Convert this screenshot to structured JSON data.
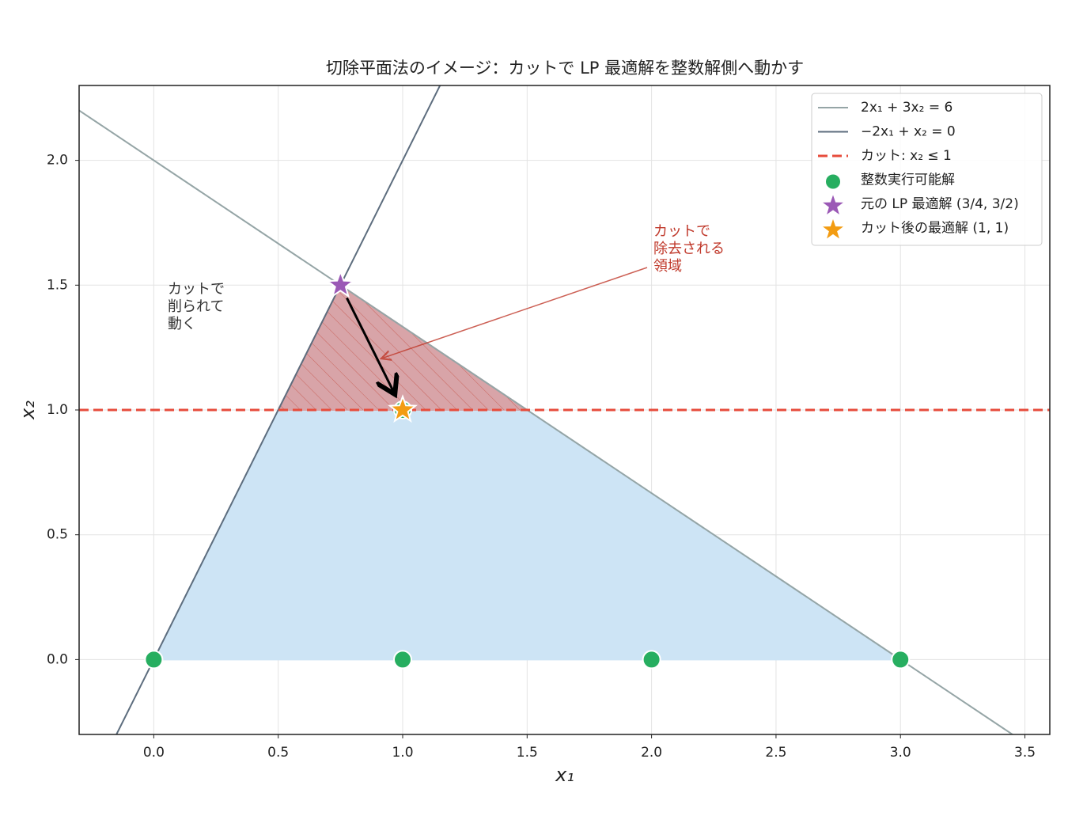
{
  "chart_data": {
    "type": "lp-region",
    "title": "切除平面法のイメージ：カットで LP 最適解を整数解側へ動かす",
    "xlabel": "x₁",
    "ylabel": "x₂",
    "xlim": [
      -0.3,
      3.6
    ],
    "ylim": [
      -0.3,
      2.3
    ],
    "xticks": [
      {
        "value": 0,
        "label": "0.0"
      },
      0.5,
      {
        "value": 1,
        "label": "1.0"
      },
      1.5,
      {
        "value": 2,
        "label": "2.0"
      },
      2.5,
      {
        "value": 3,
        "label": "3.0"
      },
      3.5
    ],
    "yticks": [
      {
        "value": 0,
        "label": "0.0"
      },
      0.5,
      {
        "value": 1,
        "label": "1.0"
      },
      1.5,
      {
        "value": 2,
        "label": "2.0"
      }
    ],
    "grid": true,
    "legend": "upper right",
    "regions": [
      {
        "x": [
          0,
          0.5,
          1.5,
          3
        ],
        "values": [
          0,
          1,
          1,
          0
        ],
        "color": "#cde4f5",
        "hatch": false
      },
      {
        "x": [
          0.5,
          0.75,
          1.5
        ],
        "values": [
          1,
          1.5,
          1
        ],
        "color": "#d8a4a8",
        "hatch": true
      }
    ],
    "series": [
      {
        "name": "2x₁ + 3x₂ = 6",
        "color": "#95a5a6",
        "style": "line",
        "x": [
          -0.3,
          3.6
        ],
        "values": [
          2.2,
          -0.4
        ]
      },
      {
        "name": "−2x₁ + x₂ = 0",
        "color": "#5d6d7e",
        "style": "line",
        "x": [
          -0.15,
          1.15
        ],
        "values": [
          -0.3,
          2.3
        ]
      },
      {
        "name": "カット: x₂ ≤ 1",
        "color": "#e74c3c",
        "style": "dashed",
        "x": [
          -0.3,
          3.6
        ],
        "values": [
          1,
          1
        ]
      },
      {
        "name": "整数実行可能解",
        "color": "#27ae60",
        "style": "scatter",
        "x": [
          0,
          1,
          2,
          3,
          1
        ],
        "values": [
          0,
          0,
          0,
          0,
          1
        ]
      },
      {
        "name": "元の LP 最適解 (3/4, 3/2)",
        "color": "#9b59b6",
        "style": "star",
        "x": [
          0.75
        ],
        "values": [
          1.5
        ]
      },
      {
        "name": "カット後の最適解 (1, 1)",
        "color": "#f39c12",
        "style": "star",
        "x": [
          1
        ],
        "values": [
          1
        ]
      }
    ],
    "annotations": [
      {
        "lines": [
          "カットで",
          "削られて",
          "動く"
        ],
        "color": "#333333"
      },
      {
        "lines": [
          "カットで",
          "除去される",
          "領域"
        ],
        "color": "#c0392b"
      }
    ]
  }
}
